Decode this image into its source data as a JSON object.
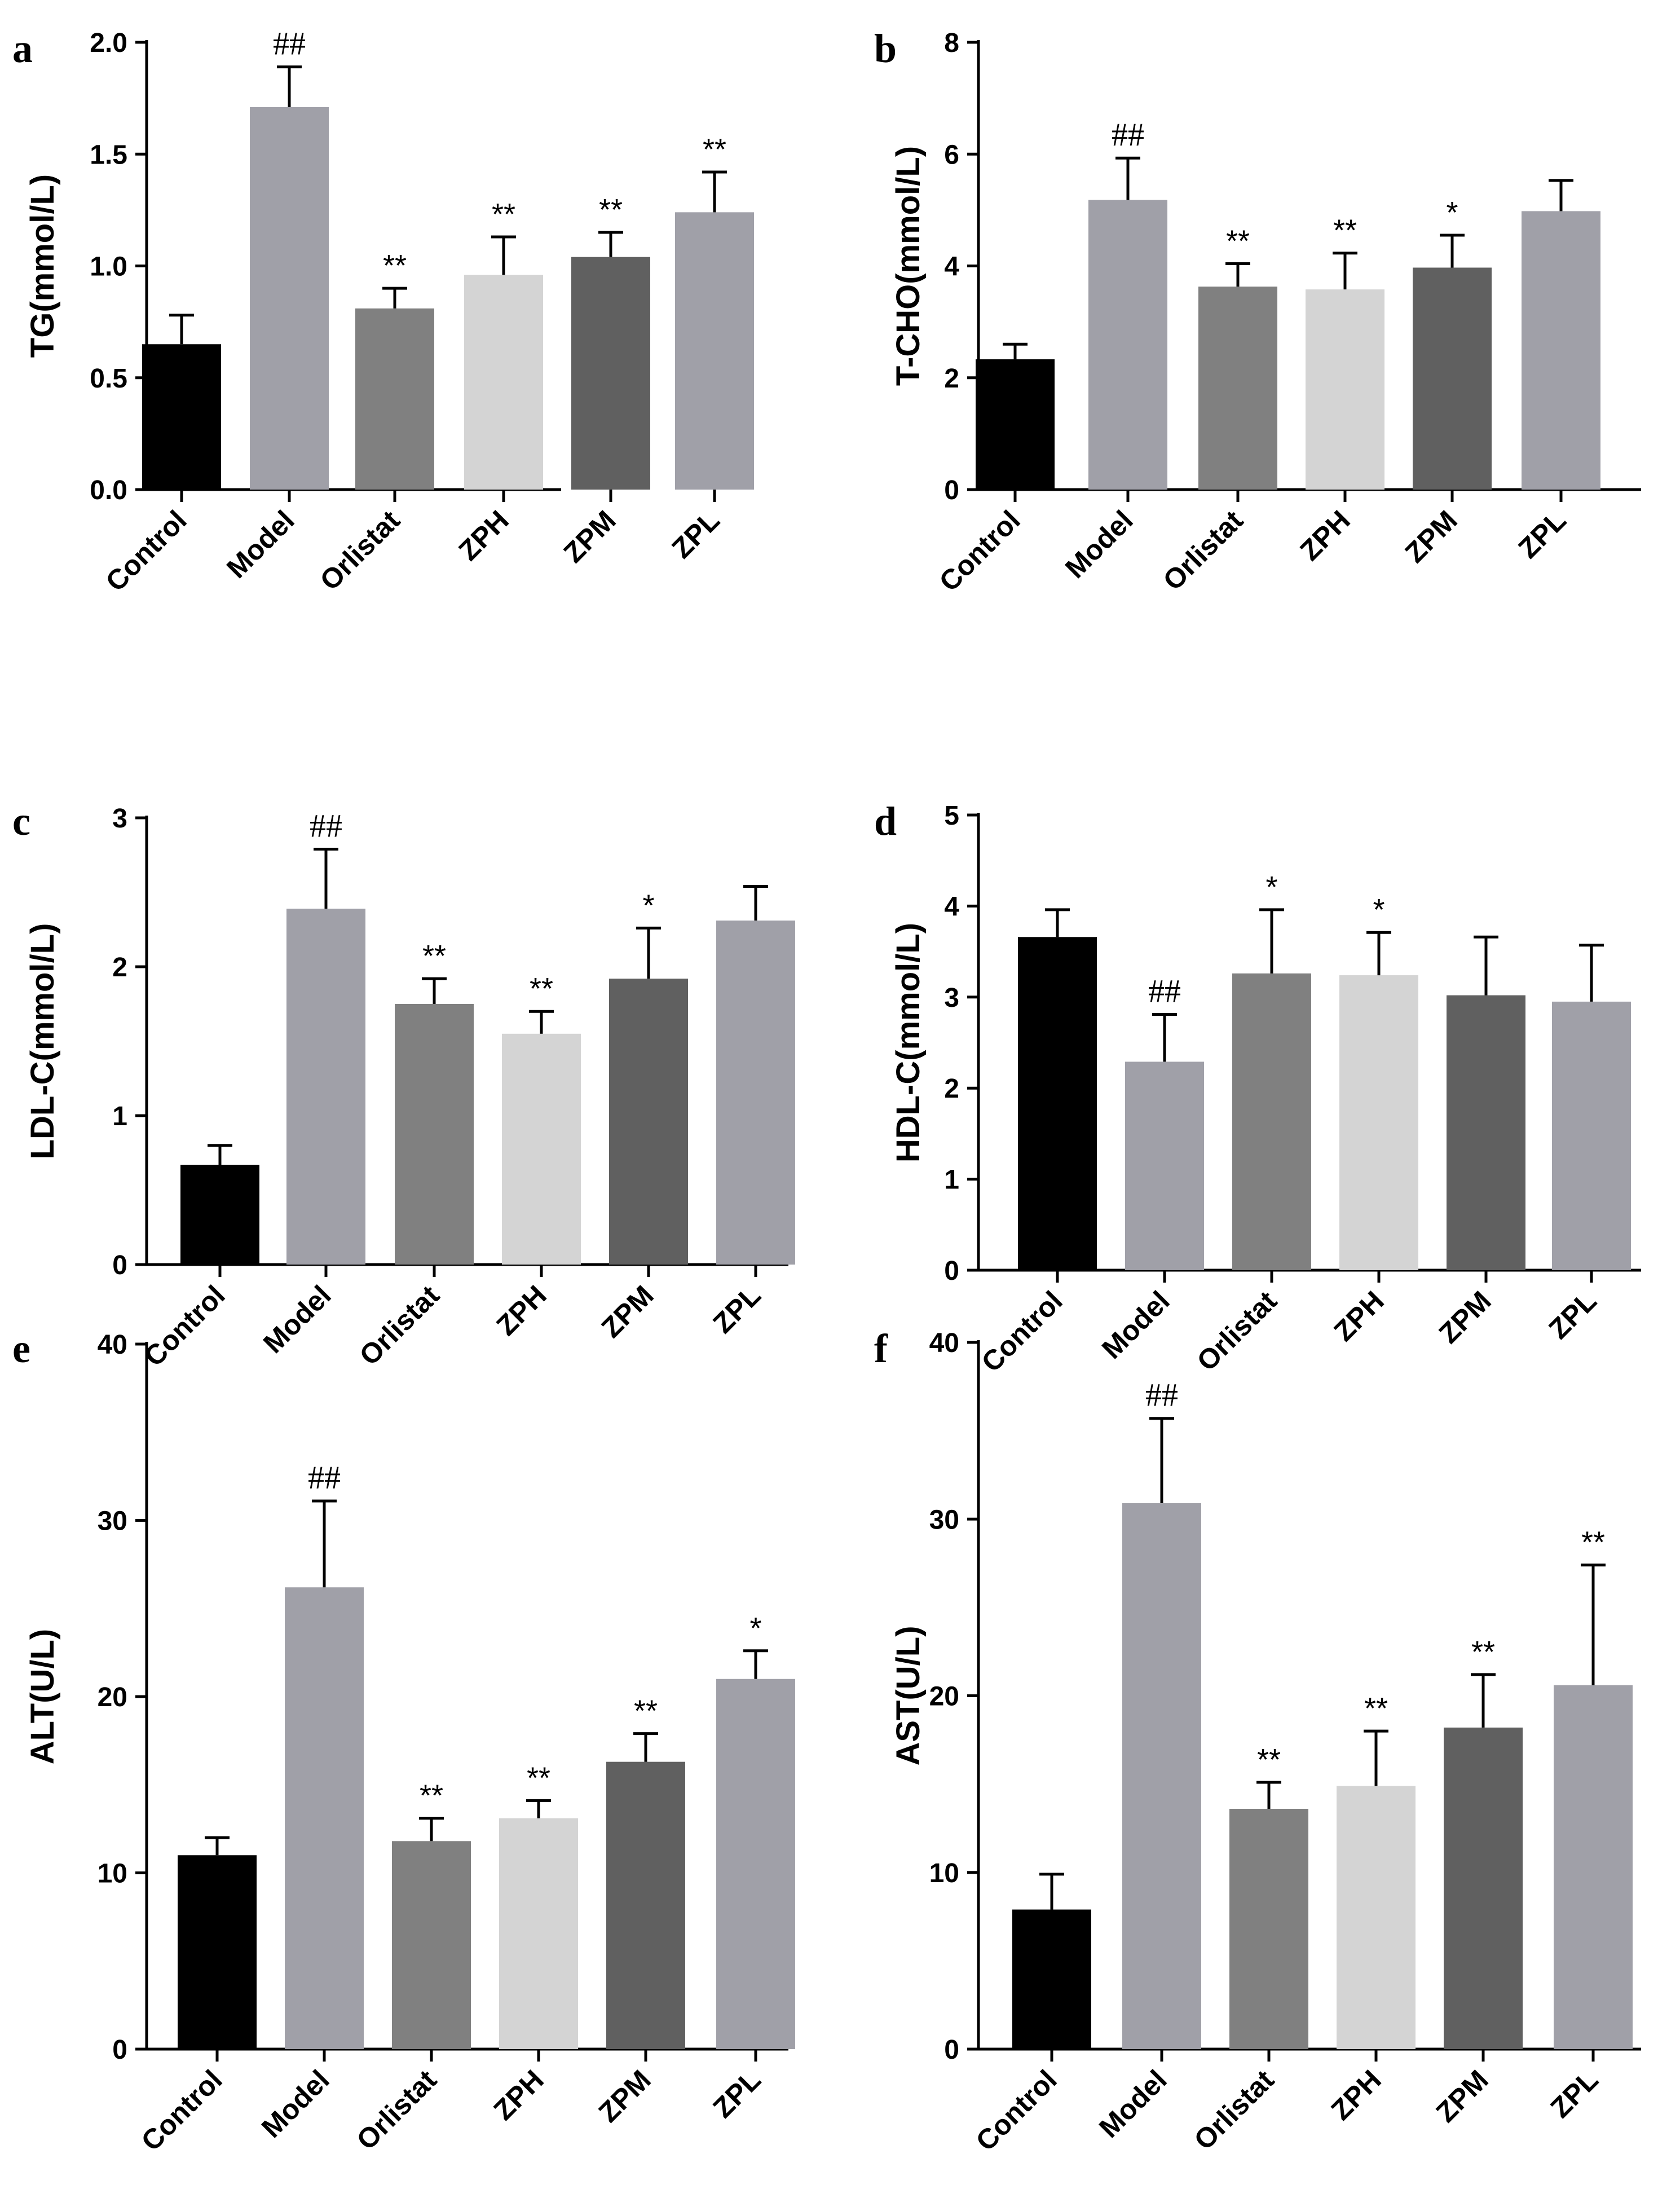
{
  "figure": {
    "group_colors": [
      "#000000",
      "#a0a0a8",
      "#808080",
      "#d4d4d4",
      "#606060",
      "#a0a0a8"
    ],
    "panels": [
      "a",
      "b",
      "c",
      "d",
      "e",
      "f"
    ]
  },
  "chart_data": [
    {
      "type": "bar",
      "panel": "a",
      "ylabel": "TG(mmol/L)",
      "ylim": [
        0,
        2.0
      ],
      "yticks": [
        "0.0",
        "0.5",
        "1.0",
        "1.5",
        "2.0"
      ],
      "categories": [
        "Control",
        "Model",
        "Orlistat",
        "ZPH",
        "ZPM",
        "ZPL"
      ],
      "values": [
        0.65,
        1.71,
        0.81,
        0.96,
        1.04,
        1.24
      ],
      "errors": [
        0.13,
        0.18,
        0.09,
        0.17,
        0.11,
        0.18
      ],
      "significance": [
        "",
        "##",
        "**",
        "**",
        "**",
        "**"
      ]
    },
    {
      "type": "bar",
      "panel": "b",
      "ylabel": "T-CHO(mmol/L)",
      "ylim": [
        0,
        8
      ],
      "yticks": [
        "0",
        "2",
        "4",
        "6",
        "8"
      ],
      "categories": [
        "Control",
        "Model",
        "Orlistat",
        "ZPH",
        "ZPM",
        "ZPL"
      ],
      "values": [
        2.33,
        5.18,
        3.63,
        3.58,
        3.97,
        4.98
      ],
      "errors": [
        0.27,
        0.75,
        0.41,
        0.65,
        0.58,
        0.55
      ],
      "significance": [
        "",
        "##",
        "**",
        "**",
        "*",
        ""
      ]
    },
    {
      "type": "bar",
      "panel": "c",
      "ylabel": "LDL-C(mmol/L)",
      "ylim": [
        0,
        3
      ],
      "yticks": [
        "0",
        "1",
        "2",
        "3"
      ],
      "categories": [
        "Control",
        "Model",
        "Orlistat",
        "ZPH",
        "ZPM",
        "ZPL"
      ],
      "values": [
        0.67,
        2.39,
        1.75,
        1.55,
        1.92,
        2.31
      ],
      "errors": [
        0.13,
        0.4,
        0.17,
        0.15,
        0.34,
        0.23
      ],
      "significance": [
        "",
        "##",
        "**",
        "**",
        "*",
        ""
      ]
    },
    {
      "type": "bar",
      "panel": "d",
      "ylabel": "HDL-C(mmol/L)",
      "ylim": [
        0,
        5
      ],
      "yticks": [
        "0",
        "1",
        "2",
        "3",
        "4",
        "5"
      ],
      "categories": [
        "Control",
        "Model",
        "Orlistat",
        "ZPH",
        "ZPM",
        "ZPL"
      ],
      "values": [
        3.66,
        2.29,
        3.26,
        3.24,
        3.02,
        2.95
      ],
      "errors": [
        0.3,
        0.52,
        0.7,
        0.47,
        0.64,
        0.62
      ],
      "significance": [
        "",
        "##",
        "*",
        "*",
        "",
        ""
      ]
    },
    {
      "type": "bar",
      "panel": "e",
      "ylabel": "ALT(U/L)",
      "ylim": [
        0,
        40
      ],
      "yticks": [
        "0",
        "10",
        "20",
        "30",
        "40"
      ],
      "categories": [
        "Control",
        "Model",
        "Orlistat",
        "ZPH",
        "ZPM",
        "ZPL"
      ],
      "values": [
        11.0,
        26.2,
        11.8,
        13.1,
        16.3,
        21.0
      ],
      "errors": [
        1.0,
        4.9,
        1.3,
        1.0,
        1.6,
        1.6
      ],
      "significance": [
        "",
        "##",
        "**",
        "**",
        "**",
        "*"
      ]
    },
    {
      "type": "bar",
      "panel": "f",
      "ylabel": "AST(U/L)",
      "ylim": [
        0,
        40
      ],
      "yticks": [
        "0",
        "10",
        "20",
        "30",
        "40"
      ],
      "categories": [
        "Control",
        "Model",
        "Orlistat",
        "ZPH",
        "ZPM",
        "ZPL"
      ],
      "values": [
        7.9,
        30.9,
        13.6,
        14.9,
        18.2,
        20.6
      ],
      "errors": [
        2.0,
        4.8,
        1.5,
        3.1,
        3.0,
        6.8
      ],
      "significance": [
        "",
        "##",
        "**",
        "**",
        "**",
        "**"
      ]
    }
  ]
}
